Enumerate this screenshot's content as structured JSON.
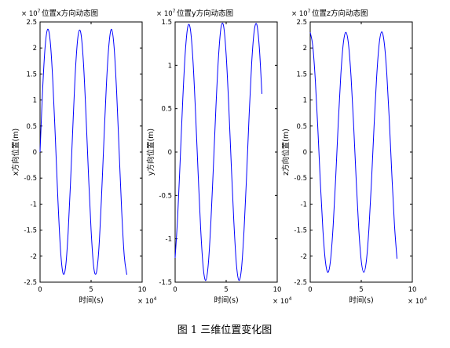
{
  "figure": {
    "caption": "图 1  三维位置变化图"
  },
  "style": {
    "line_color": "#0000ff",
    "axes_color": "#000000",
    "background": "#ffffff"
  },
  "chart_data": [
    {
      "type": "line",
      "title": "位置x方向动态图",
      "y_multiplier": "× 10",
      "y_multiplier_exp": "7",
      "x_multiplier": "× 10",
      "x_multiplier_exp": "4",
      "xlabel": "时间(s)",
      "ylabel": "x方向位置(m)",
      "xlim": [
        0,
        10
      ],
      "ylim": [
        -2.5,
        2.5
      ],
      "xticks": [
        0,
        5,
        10
      ],
      "yticks": [
        -2.5,
        -2,
        -1.5,
        -1,
        -0.5,
        0,
        0.5,
        1,
        1.5,
        2,
        2.5
      ],
      "series": [
        {
          "x": [
            0,
            0.25,
            0.5,
            0.75,
            1.0,
            1.25,
            1.5,
            1.75,
            2.0,
            2.25,
            2.5,
            2.75,
            3.0,
            3.25,
            3.5,
            3.75,
            4.0,
            4.25,
            4.5,
            4.75,
            5.0,
            5.25,
            5.5,
            5.75,
            6.0,
            6.25,
            6.5,
            6.75,
            7.0,
            7.25,
            7.5,
            7.75,
            8.0,
            8.25,
            8.5
          ],
          "values": [
            0,
            1.19,
            2.03,
            2.36,
            2.12,
            1.36,
            0.26,
            -0.92,
            -1.87,
            -2.33,
            -2.21,
            -1.55,
            -0.51,
            0.66,
            1.69,
            2.27,
            2.28,
            1.72,
            0.71,
            -0.46,
            -1.5,
            -2.2,
            -2.33,
            -1.89,
            -0.95,
            0.2,
            1.3,
            2.07,
            2.36,
            2.02,
            1.16,
            0.0,
            -1.15,
            -2.0,
            -2.36
          ]
        }
      ]
    },
    {
      "type": "line",
      "title": "位置y方向动态图",
      "y_multiplier": "× 10",
      "y_multiplier_exp": "7",
      "x_multiplier": "× 10",
      "x_multiplier_exp": "4",
      "xlabel": "时间(s)",
      "ylabel": "y方向位置(m)",
      "xlim": [
        0,
        10
      ],
      "ylim": [
        -1.5,
        1.5
      ],
      "xticks": [
        0,
        5,
        10
      ],
      "yticks": [
        -1.5,
        -1,
        -0.5,
        0,
        0.5,
        1,
        1.5
      ],
      "series": [
        {
          "x": [
            0,
            0.25,
            0.5,
            0.75,
            1.0,
            1.25,
            1.5,
            1.75,
            2.0,
            2.25,
            2.5,
            2.75,
            3.0,
            3.25,
            3.5,
            3.75,
            4.0,
            4.25,
            4.5,
            4.75,
            5.0,
            5.25,
            5.5,
            5.75,
            6.0,
            6.25,
            6.5,
            6.75,
            7.0,
            7.25,
            7.5,
            7.75,
            8.0,
            8.25,
            8.5
          ],
          "values": [
            -1.22,
            -0.74,
            -0.08,
            0.61,
            1.16,
            1.45,
            1.41,
            1.05,
            0.45,
            -0.24,
            -0.88,
            -1.33,
            -1.48,
            -1.29,
            -0.81,
            -0.16,
            0.53,
            1.1,
            1.44,
            1.45,
            1.12,
            0.54,
            -0.15,
            -0.8,
            -1.29,
            -1.48,
            -1.34,
            -0.9,
            -0.27,
            0.43,
            1.03,
            1.4,
            1.47,
            1.2,
            0.67
          ]
        }
      ]
    },
    {
      "type": "line",
      "title": "位置z方向动态图",
      "y_multiplier": "× 10",
      "y_multiplier_exp": "7",
      "x_multiplier": "× 10",
      "x_multiplier_exp": "4",
      "xlabel": "时间(s)",
      "ylabel": "z方向位置(m)",
      "xlim": [
        0,
        10
      ],
      "ylim": [
        -2.5,
        2.5
      ],
      "xticks": [
        0,
        5,
        10
      ],
      "yticks": [
        -2.5,
        -2,
        -1.5,
        -1,
        -0.5,
        0,
        0.5,
        1,
        1.5,
        2,
        2.5
      ],
      "series": [
        {
          "x": [
            0,
            0.25,
            0.5,
            0.75,
            1.0,
            1.25,
            1.5,
            1.75,
            2.0,
            2.25,
            2.5,
            2.75,
            3.0,
            3.25,
            3.5,
            3.75,
            4.0,
            4.25,
            4.5,
            4.75,
            5.0,
            5.25,
            5.5,
            5.75,
            6.0,
            6.25,
            6.5,
            6.75,
            7.0,
            7.25,
            7.5,
            7.75,
            8.0,
            8.25,
            8.5
          ],
          "values": [
            2.3,
            2.04,
            1.38,
            0.44,
            -0.61,
            -1.52,
            -2.12,
            -2.31,
            -2.06,
            -1.41,
            -0.48,
            0.57,
            1.49,
            2.1,
            2.3,
            2.07,
            1.45,
            0.53,
            -0.52,
            -1.46,
            -2.09,
            -2.31,
            -2.09,
            -1.48,
            -0.57,
            0.48,
            1.42,
            2.07,
            2.31,
            2.1,
            1.51,
            0.6,
            -0.45,
            -1.39,
            -2.05
          ]
        }
      ]
    }
  ]
}
